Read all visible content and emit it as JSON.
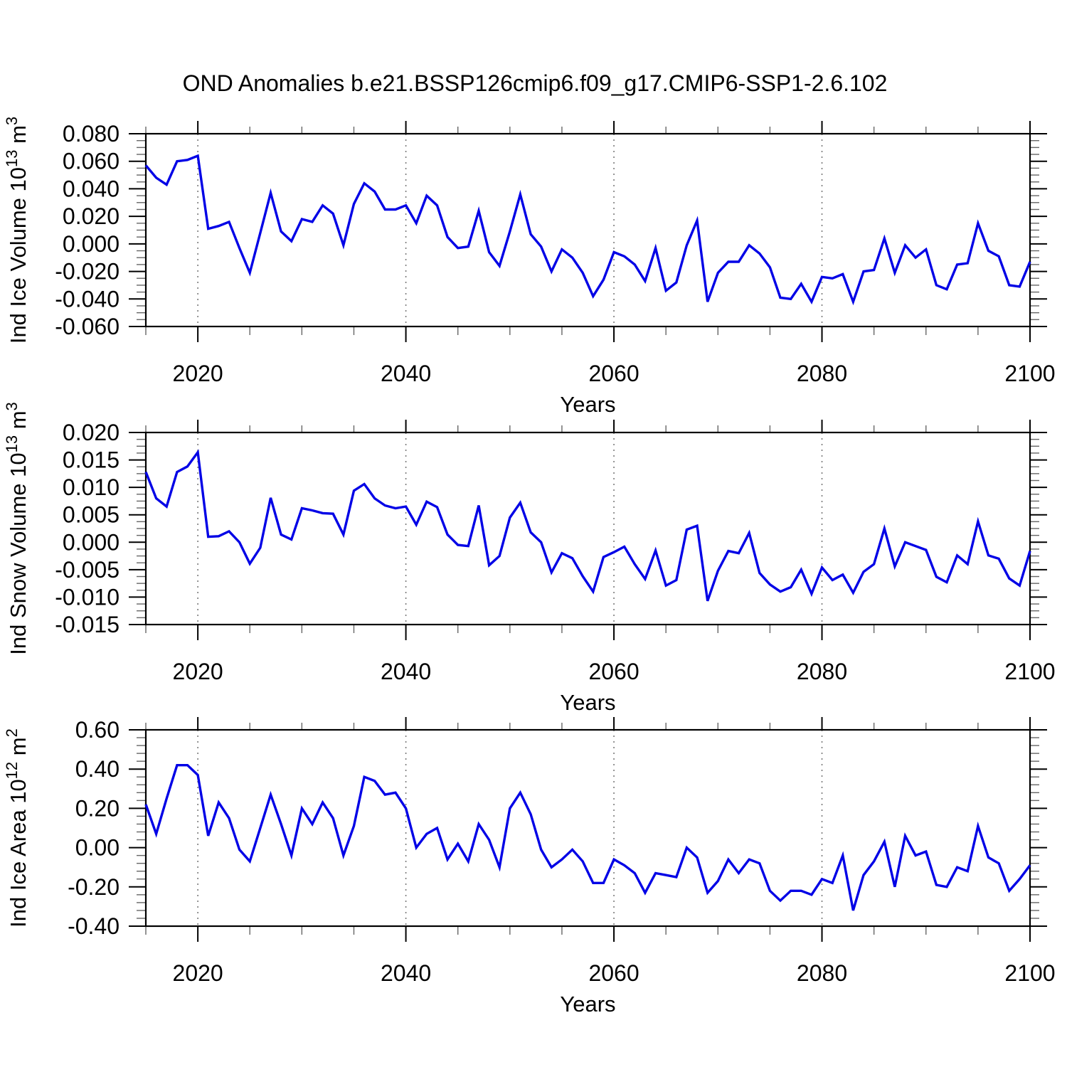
{
  "title": "OND Anomalies b.e21.BSSP126cmip6.f09_g17.CMIP6-SSP1-2.6.102",
  "line_color": "#0202e6",
  "frame_color": "#000000",
  "grid_color": "#7a7a7a",
  "years": [
    2015,
    2016,
    2017,
    2018,
    2019,
    2020,
    2021,
    2022,
    2023,
    2024,
    2025,
    2026,
    2027,
    2028,
    2029,
    2030,
    2031,
    2032,
    2033,
    2034,
    2035,
    2036,
    2037,
    2038,
    2039,
    2040,
    2041,
    2042,
    2043,
    2044,
    2045,
    2046,
    2047,
    2048,
    2049,
    2050,
    2051,
    2052,
    2053,
    2054,
    2055,
    2056,
    2057,
    2058,
    2059,
    2060,
    2061,
    2062,
    2063,
    2064,
    2065,
    2066,
    2067,
    2068,
    2069,
    2070,
    2071,
    2072,
    2073,
    2074,
    2075,
    2076,
    2077,
    2078,
    2079,
    2080,
    2081,
    2082,
    2083,
    2084,
    2085,
    2086,
    2087,
    2088,
    2089,
    2090,
    2091,
    2092,
    2093,
    2094,
    2095,
    2096,
    2097,
    2098,
    2099,
    2100
  ],
  "chart_data": [
    {
      "type": "line",
      "name": "ind-ice-volume",
      "ylabel_parts": [
        {
          "t": "Ind Ice Volume 10"
        },
        {
          "t": "13",
          "sup": true
        },
        {
          "t": " m"
        },
        {
          "t": "3",
          "sup": true
        }
      ],
      "xlabel": "Years",
      "xlim": [
        2015,
        2100
      ],
      "xticks": [
        {
          "label": "2020",
          "value": 2020
        },
        {
          "label": "2040",
          "value": 2040
        },
        {
          "label": "2060",
          "value": 2060
        },
        {
          "label": "2080",
          "value": 2080
        },
        {
          "label": "2100",
          "value": 2100
        }
      ],
      "x_minor_step": 5,
      "grid_years": [
        2020,
        2040,
        2060,
        2080
      ],
      "ylim": [
        -0.06,
        0.08
      ],
      "yticks": [
        {
          "label": "0.080",
          "value": 0.08
        },
        {
          "label": "0.060",
          "value": 0.06
        },
        {
          "label": "0.040",
          "value": 0.04
        },
        {
          "label": "0.020",
          "value": 0.02
        },
        {
          "label": "0.000",
          "value": 0.0
        },
        {
          "label": "-0.020",
          "value": -0.02
        },
        {
          "label": "-0.040",
          "value": -0.04
        },
        {
          "label": "-0.060",
          "value": -0.06
        }
      ],
      "y_minor_step": 0.005,
      "grid": "vertical-dashed",
      "legend": "none",
      "values": [
        0.057,
        0.048,
        0.043,
        0.06,
        0.061,
        0.064,
        0.011,
        0.013,
        0.016,
        -0.003,
        -0.021,
        0.008,
        0.037,
        0.009,
        0.002,
        0.018,
        0.016,
        0.028,
        0.022,
        -0.001,
        0.029,
        0.044,
        0.038,
        0.025,
        0.025,
        0.028,
        0.015,
        0.035,
        0.028,
        0.005,
        -0.003,
        -0.002,
        0.024,
        -0.006,
        -0.016,
        0.009,
        0.036,
        0.007,
        -0.002,
        -0.02,
        -0.004,
        -0.01,
        -0.021,
        -0.038,
        -0.026,
        -0.006,
        -0.009,
        -0.015,
        -0.027,
        -0.003,
        -0.034,
        -0.028,
        -0.001,
        0.017,
        -0.042,
        -0.021,
        -0.013,
        -0.013,
        -0.001,
        -0.007,
        -0.017,
        -0.039,
        -0.04,
        -0.029,
        -0.042,
        -0.024,
        -0.025,
        -0.022,
        -0.042,
        -0.02,
        -0.019,
        0.004,
        -0.021,
        -0.001,
        -0.01,
        -0.004,
        -0.03,
        -0.033,
        -0.015,
        -0.014,
        0.015,
        -0.005,
        -0.009,
        -0.03,
        -0.031,
        -0.013
      ]
    },
    {
      "type": "line",
      "name": "ind-snow-volume",
      "ylabel_parts": [
        {
          "t": "Ind Snow Volume 10"
        },
        {
          "t": "13",
          "sup": true
        },
        {
          "t": " m"
        },
        {
          "t": "3",
          "sup": true
        }
      ],
      "xlabel": "Years",
      "xlim": [
        2015,
        2100
      ],
      "xticks": [
        {
          "label": "2020",
          "value": 2020
        },
        {
          "label": "2040",
          "value": 2040
        },
        {
          "label": "2060",
          "value": 2060
        },
        {
          "label": "2080",
          "value": 2080
        },
        {
          "label": "2100",
          "value": 2100
        }
      ],
      "x_minor_step": 5,
      "grid_years": [
        2020,
        2040,
        2060,
        2080
      ],
      "ylim": [
        -0.015,
        0.02
      ],
      "yticks": [
        {
          "label": "0.020",
          "value": 0.02
        },
        {
          "label": "0.015",
          "value": 0.015
        },
        {
          "label": "0.010",
          "value": 0.01
        },
        {
          "label": "0.005",
          "value": 0.005
        },
        {
          "label": "0.000",
          "value": 0.0
        },
        {
          "label": "-0.005",
          "value": -0.005
        },
        {
          "label": "-0.010",
          "value": -0.01
        },
        {
          "label": "-0.015",
          "value": -0.015
        }
      ],
      "y_minor_step": 0.00125,
      "grid": "vertical-dashed",
      "legend": "none",
      "values": [
        0.0128,
        0.008,
        0.0065,
        0.0128,
        0.0138,
        0.0164,
        0.001,
        0.0011,
        0.002,
        0.0,
        -0.0039,
        -0.001,
        0.0081,
        0.0014,
        0.0005,
        0.0062,
        0.0058,
        0.0053,
        0.0052,
        0.0014,
        0.0094,
        0.0106,
        0.008,
        0.0067,
        0.0062,
        0.0065,
        0.0032,
        0.0074,
        0.0064,
        0.0014,
        -0.0005,
        -0.0007,
        0.0067,
        -0.0042,
        -0.0025,
        0.0045,
        0.0072,
        0.0018,
        0.0,
        -0.0055,
        -0.002,
        -0.0029,
        -0.0062,
        -0.009,
        -0.0027,
        -0.0018,
        -0.0008,
        -0.004,
        -0.0067,
        -0.0015,
        -0.0079,
        -0.0069,
        0.0023,
        0.003,
        -0.0107,
        -0.0052,
        -0.0016,
        -0.002,
        0.0017,
        -0.0056,
        -0.0077,
        -0.009,
        -0.0082,
        -0.005,
        -0.0094,
        -0.0046,
        -0.0069,
        -0.0059,
        -0.0092,
        -0.0054,
        -0.004,
        0.0025,
        -0.0044,
        0.0,
        -0.0007,
        -0.0014,
        -0.0063,
        -0.0073,
        -0.0024,
        -0.004,
        0.0038,
        -0.0024,
        -0.003,
        -0.0066,
        -0.0079,
        -0.0016
      ]
    },
    {
      "type": "line",
      "name": "ind-ice-area",
      "ylabel_parts": [
        {
          "t": "Ind Ice Area 10"
        },
        {
          "t": "12",
          "sup": true
        },
        {
          "t": " m"
        },
        {
          "t": "2",
          "sup": true
        }
      ],
      "xlabel": "Years",
      "xlim": [
        2015,
        2100
      ],
      "xticks": [
        {
          "label": "2020",
          "value": 2020
        },
        {
          "label": "2040",
          "value": 2040
        },
        {
          "label": "2060",
          "value": 2060
        },
        {
          "label": "2080",
          "value": 2080
        },
        {
          "label": "2100",
          "value": 2100
        }
      ],
      "x_minor_step": 5,
      "grid_years": [
        2020,
        2040,
        2060,
        2080
      ],
      "ylim": [
        -0.4,
        0.6
      ],
      "yticks": [
        {
          "label": "0.60",
          "value": 0.6
        },
        {
          "label": "0.40",
          "value": 0.4
        },
        {
          "label": "0.20",
          "value": 0.2
        },
        {
          "label": "0.00",
          "value": 0.0
        },
        {
          "label": "-0.20",
          "value": -0.2
        },
        {
          "label": "-0.40",
          "value": -0.4
        }
      ],
      "y_minor_step": 0.04,
      "grid": "vertical-dashed",
      "legend": "none",
      "values": [
        0.22,
        0.07,
        0.25,
        0.42,
        0.42,
        0.37,
        0.06,
        0.23,
        0.15,
        -0.01,
        -0.07,
        0.1,
        0.27,
        0.12,
        -0.04,
        0.2,
        0.12,
        0.23,
        0.15,
        -0.04,
        0.11,
        0.36,
        0.34,
        0.27,
        0.28,
        0.2,
        0.0,
        0.07,
        0.1,
        -0.06,
        0.02,
        -0.07,
        0.12,
        0.04,
        -0.1,
        0.2,
        0.28,
        0.17,
        -0.01,
        -0.1,
        -0.06,
        -0.01,
        -0.07,
        -0.18,
        -0.18,
        -0.06,
        -0.09,
        -0.13,
        -0.23,
        -0.13,
        -0.14,
        -0.15,
        0.0,
        -0.05,
        -0.23,
        -0.17,
        -0.06,
        -0.13,
        -0.06,
        -0.08,
        -0.22,
        -0.27,
        -0.22,
        -0.22,
        -0.24,
        -0.16,
        -0.18,
        -0.04,
        -0.32,
        -0.14,
        -0.07,
        0.03,
        -0.2,
        0.06,
        -0.04,
        -0.02,
        -0.19,
        -0.2,
        -0.1,
        -0.12,
        0.11,
        -0.05,
        -0.08,
        -0.22,
        -0.16,
        -0.09
      ]
    }
  ]
}
